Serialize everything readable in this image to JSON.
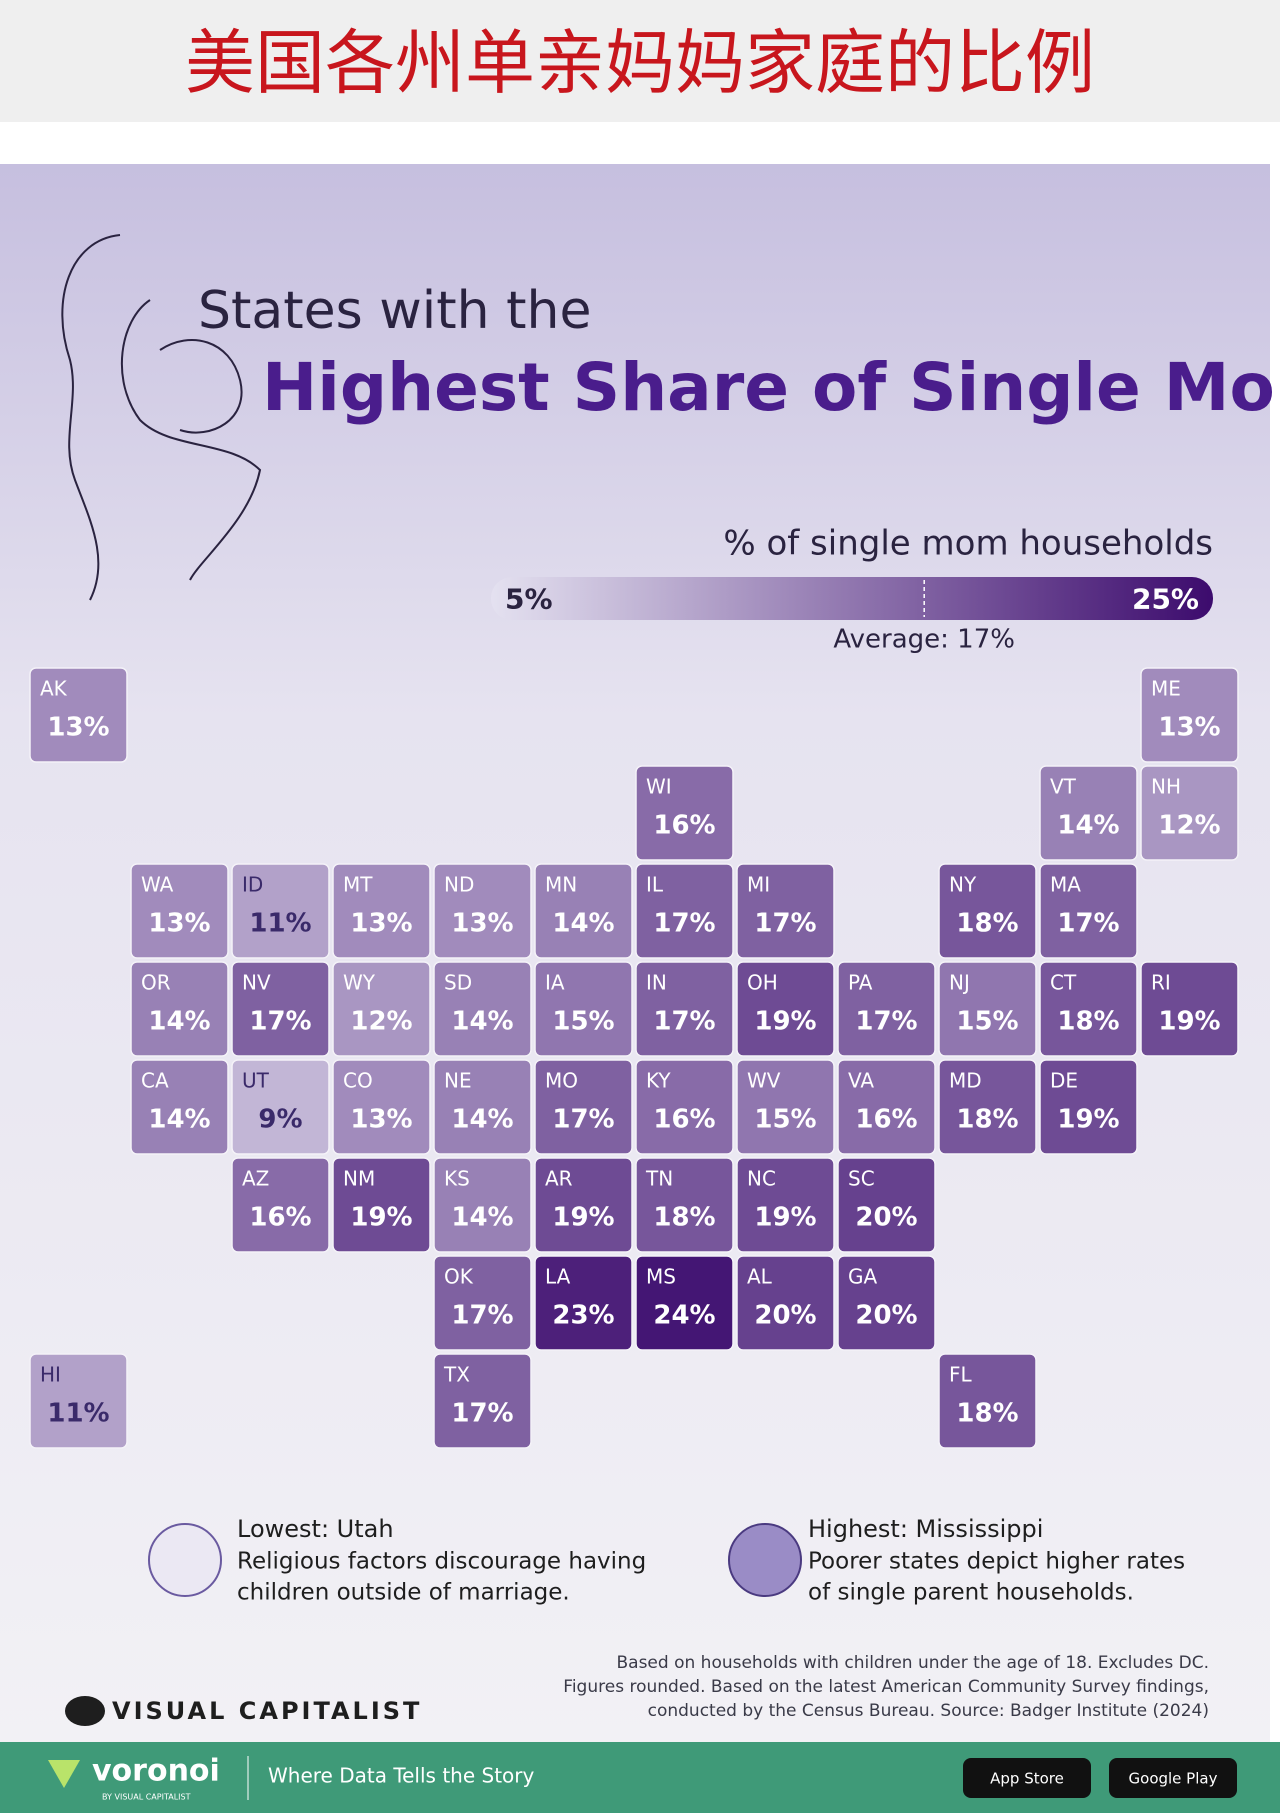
{
  "header": {
    "title": "美国各州单亲妈妈家庭的比例"
  },
  "infographic": {
    "title_line1": "States with the",
    "title_line2": "Highest Share of Single Moms",
    "legend": {
      "title": "% of single mom households",
      "min": {
        "value": 5,
        "label": "5%"
      },
      "max": {
        "value": 25,
        "label": "25%"
      },
      "average": {
        "value": 17,
        "label": "Average: 17%"
      },
      "color_low": "#e4e1f0",
      "color_high": "#3c0b6d"
    },
    "states": [
      {
        "abbr": "AK",
        "value": 13,
        "label": "13%"
      },
      {
        "abbr": "ME",
        "value": 13,
        "label": "13%"
      },
      {
        "abbr": "WI",
        "value": 16,
        "label": "16%"
      },
      {
        "abbr": "VT",
        "value": 14,
        "label": "14%"
      },
      {
        "abbr": "NH",
        "value": 12,
        "label": "12%"
      },
      {
        "abbr": "WA",
        "value": 13,
        "label": "13%"
      },
      {
        "abbr": "ID",
        "value": 11,
        "label": "11%"
      },
      {
        "abbr": "MT",
        "value": 13,
        "label": "13%"
      },
      {
        "abbr": "ND",
        "value": 13,
        "label": "13%"
      },
      {
        "abbr": "MN",
        "value": 14,
        "label": "14%"
      },
      {
        "abbr": "IL",
        "value": 17,
        "label": "17%"
      },
      {
        "abbr": "MI",
        "value": 17,
        "label": "17%"
      },
      {
        "abbr": "NY",
        "value": 18,
        "label": "18%"
      },
      {
        "abbr": "MA",
        "value": 17,
        "label": "17%"
      },
      {
        "abbr": "OR",
        "value": 14,
        "label": "14%"
      },
      {
        "abbr": "NV",
        "value": 17,
        "label": "17%"
      },
      {
        "abbr": "WY",
        "value": 12,
        "label": "12%"
      },
      {
        "abbr": "SD",
        "value": 14,
        "label": "14%"
      },
      {
        "abbr": "IA",
        "value": 15,
        "label": "15%"
      },
      {
        "abbr": "IN",
        "value": 17,
        "label": "17%"
      },
      {
        "abbr": "OH",
        "value": 19,
        "label": "19%"
      },
      {
        "abbr": "PA",
        "value": 17,
        "label": "17%"
      },
      {
        "abbr": "NJ",
        "value": 15,
        "label": "15%"
      },
      {
        "abbr": "CT",
        "value": 18,
        "label": "18%"
      },
      {
        "abbr": "RI",
        "value": 19,
        "label": "19%"
      },
      {
        "abbr": "CA",
        "value": 14,
        "label": "14%"
      },
      {
        "abbr": "UT",
        "value": 9,
        "label": "9%"
      },
      {
        "abbr": "CO",
        "value": 13,
        "label": "13%"
      },
      {
        "abbr": "NE",
        "value": 14,
        "label": "14%"
      },
      {
        "abbr": "MO",
        "value": 17,
        "label": "17%"
      },
      {
        "abbr": "KY",
        "value": 16,
        "label": "16%"
      },
      {
        "abbr": "WV",
        "value": 15,
        "label": "15%"
      },
      {
        "abbr": "VA",
        "value": 16,
        "label": "16%"
      },
      {
        "abbr": "MD",
        "value": 18,
        "label": "18%"
      },
      {
        "abbr": "DE",
        "value": 19,
        "label": "19%"
      },
      {
        "abbr": "AZ",
        "value": 16,
        "label": "16%"
      },
      {
        "abbr": "NM",
        "value": 19,
        "label": "19%"
      },
      {
        "abbr": "KS",
        "value": 14,
        "label": "14%"
      },
      {
        "abbr": "AR",
        "value": 19,
        "label": "19%"
      },
      {
        "abbr": "TN",
        "value": 18,
        "label": "18%"
      },
      {
        "abbr": "NC",
        "value": 19,
        "label": "19%"
      },
      {
        "abbr": "SC",
        "value": 20,
        "label": "20%"
      },
      {
        "abbr": "OK",
        "value": 17,
        "label": "17%"
      },
      {
        "abbr": "LA",
        "value": 23,
        "label": "23%"
      },
      {
        "abbr": "MS",
        "value": 24,
        "label": "24%"
      },
      {
        "abbr": "AL",
        "value": 20,
        "label": "20%"
      },
      {
        "abbr": "GA",
        "value": 20,
        "label": "20%"
      },
      {
        "abbr": "HI",
        "value": 11,
        "label": "11%"
      },
      {
        "abbr": "TX",
        "value": 17,
        "label": "17%"
      },
      {
        "abbr": "FL",
        "value": 18,
        "label": "18%"
      }
    ],
    "notes": [
      {
        "heading": "Lowest: Utah",
        "lines": [
          "Religious factors discourage having",
          "children outside of marriage."
        ]
      },
      {
        "heading": "Highest: Mississippi",
        "lines": [
          "Poorer states depict higher rates",
          "of single parent households."
        ]
      }
    ],
    "footnote_lines": [
      "Based on households with children under the age of 18. Excludes DC.",
      "Figures rounded. Based on the latest American Community Survey findings,",
      "conducted by the Census Bureau. Source: Badger Institute (2024)"
    ],
    "brand": "VISUAL CAPITALIST"
  },
  "footer": {
    "logo": "voronoi",
    "logo_sub": "BY VISUAL CAPITALIST",
    "tagline": "Where Data Tells the Story",
    "buttons": [
      "App Store",
      "Google Play"
    ]
  }
}
